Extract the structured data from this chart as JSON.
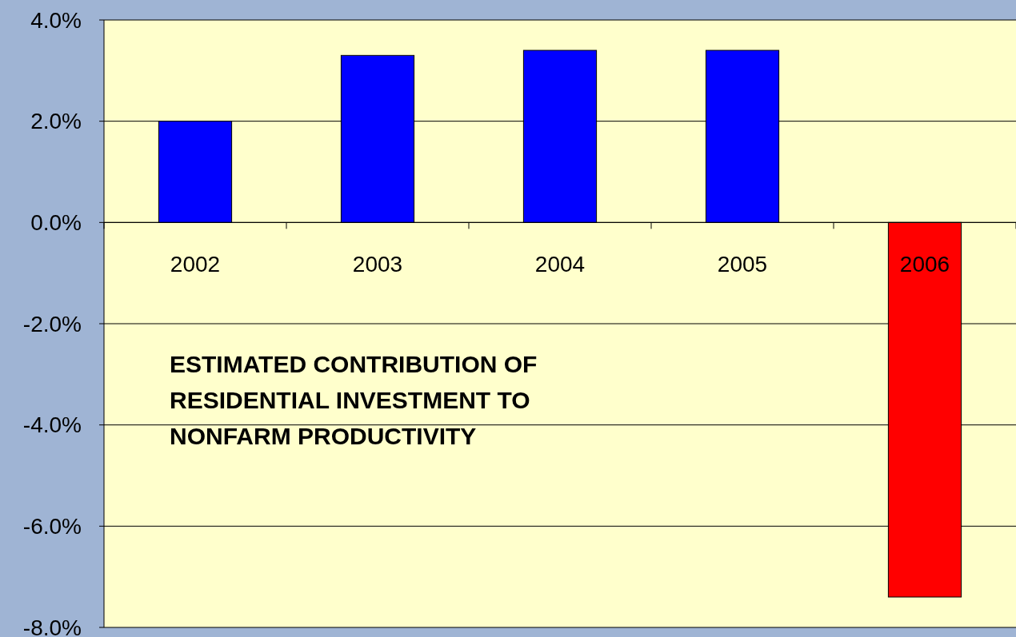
{
  "chart_data": {
    "type": "bar",
    "title": "ESTIMATED CONTRIBUTION OF\nRESIDENTIAL INVESTMENT TO\nNONFARM PRODUCTIVITY",
    "categories": [
      "2002",
      "2003",
      "2004",
      "2005",
      "2006"
    ],
    "values": [
      2.0,
      3.3,
      3.4,
      3.4,
      -7.4
    ],
    "colors": [
      "#0000ff",
      "#0000ff",
      "#0000ff",
      "#0000ff",
      "#ff0000"
    ],
    "ylim": [
      -8,
      4
    ],
    "yticks": [
      {
        "value": -8,
        "label": "-8.0%"
      },
      {
        "value": -6,
        "label": "-6.0%"
      },
      {
        "value": -4,
        "label": "-4.0%"
      },
      {
        "value": -2,
        "label": "-2.0%"
      },
      {
        "value": 0,
        "label": "0.0%"
      },
      {
        "value": 2,
        "label": "2.0%"
      },
      {
        "value": 4,
        "label": "4.0%"
      }
    ],
    "grid": "y"
  }
}
